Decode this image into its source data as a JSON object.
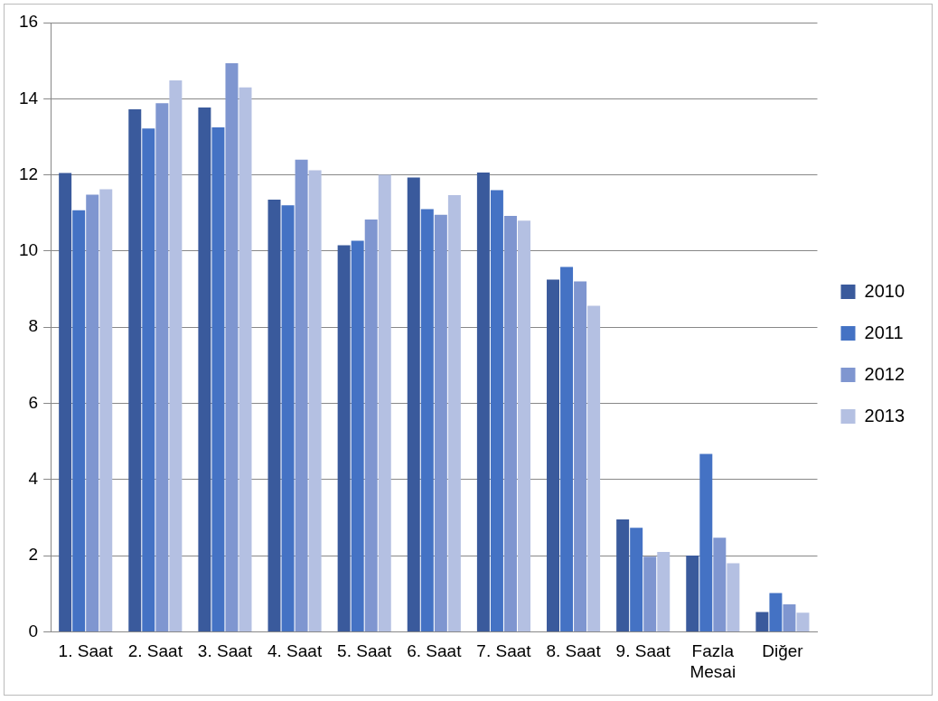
{
  "chart_data": {
    "type": "bar",
    "categories": [
      "1. Saat",
      "2. Saat",
      "3. Saat",
      "4. Saat",
      "5. Saat",
      "6. Saat",
      "7. Saat",
      "8. Saat",
      "9. Saat",
      "Fazla Mesai",
      "Diğer"
    ],
    "series": [
      {
        "name": "2010",
        "color": "#3a5a9c",
        "values": [
          12.05,
          13.72,
          13.77,
          11.35,
          10.15,
          11.93,
          12.06,
          9.25,
          2.95,
          2.0,
          0.52
        ]
      },
      {
        "name": "2011",
        "color": "#4472c4",
        "values": [
          11.07,
          13.22,
          13.25,
          11.2,
          10.27,
          11.1,
          11.6,
          9.58,
          2.73,
          4.67,
          1.02
        ]
      },
      {
        "name": "2012",
        "color": "#7f96d0",
        "values": [
          11.48,
          13.88,
          14.93,
          12.4,
          10.83,
          10.95,
          10.92,
          9.2,
          1.97,
          2.47,
          0.72
        ]
      },
      {
        "name": "2013",
        "color": "#b4c0e2",
        "values": [
          11.62,
          14.48,
          14.3,
          12.12,
          12.0,
          11.47,
          10.8,
          8.56,
          2.1,
          1.8,
          0.5
        ]
      }
    ],
    "ylim": [
      0,
      16
    ],
    "yticks": [
      0,
      2,
      4,
      6,
      8,
      10,
      12,
      14,
      16
    ],
    "grid": "y",
    "legend": "right"
  }
}
